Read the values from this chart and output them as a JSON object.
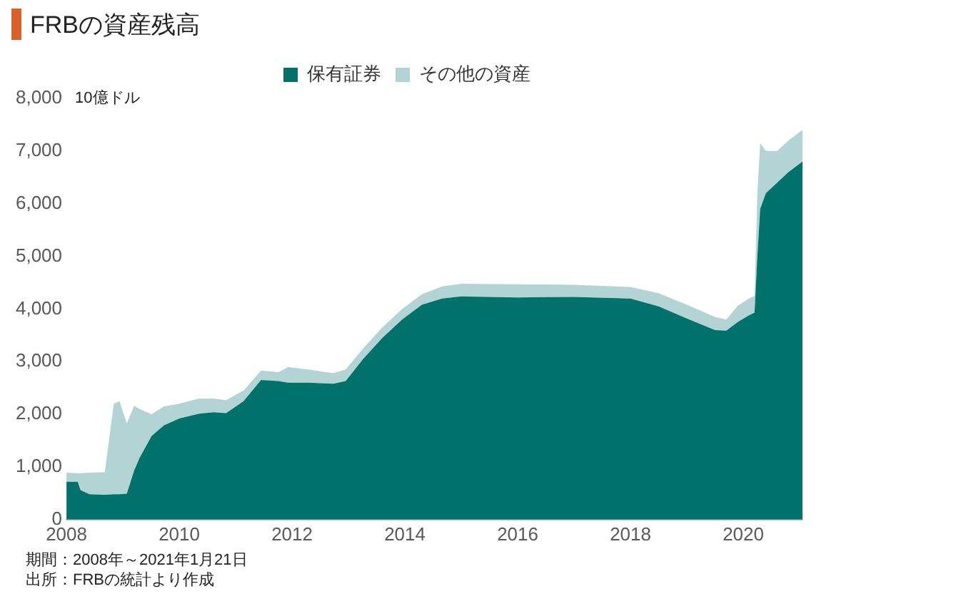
{
  "chart_data": {
    "type": "area",
    "title": "FRBの資産残高",
    "ylabel": "10億ドル",
    "stacked": true,
    "legend": "top",
    "grid": false,
    "x": [
      2008.0,
      2008.2,
      2008.25,
      2008.41,
      2008.68,
      2008.84,
      2008.94,
      2009.07,
      2009.2,
      2009.3,
      2009.51,
      2009.73,
      2010.0,
      2010.35,
      2010.61,
      2010.83,
      2011.14,
      2011.45,
      2011.76,
      2011.93,
      2012.29,
      2012.73,
      2012.95,
      2013.26,
      2013.6,
      2013.95,
      2014.3,
      2014.66,
      2015.0,
      2016.0,
      2017.0,
      2018.0,
      2018.5,
      2019.0,
      2019.5,
      2019.7,
      2019.9,
      2020.1,
      2020.2,
      2020.25,
      2020.3,
      2020.4,
      2020.6,
      2020.8,
      2021.05
    ],
    "series": [
      {
        "name": "保有証券",
        "color": "#00716b",
        "values": [
          720,
          720,
          560,
          480,
          470,
          480,
          480,
          490,
          930,
          1180,
          1590,
          1790,
          1920,
          2010,
          2040,
          2020,
          2250,
          2650,
          2630,
          2600,
          2600,
          2580,
          2630,
          3050,
          3450,
          3800,
          4080,
          4200,
          4240,
          4220,
          4230,
          4200,
          4050,
          3820,
          3600,
          3590,
          3750,
          3880,
          3930,
          5000,
          5900,
          6200,
          6400,
          6600,
          6800
        ]
      },
      {
        "name": "その他の資産",
        "color": "#b3d3d4",
        "values": [
          170,
          160,
          320,
          410,
          430,
          1720,
          1770,
          1340,
          1230,
          920,
          410,
          360,
          280,
          290,
          260,
          250,
          200,
          180,
          170,
          300,
          250,
          200,
          220,
          200,
          200,
          200,
          200,
          230,
          240,
          250,
          230,
          220,
          250,
          260,
          250,
          210,
          310,
          320,
          320,
          1200,
          1250,
          800,
          600,
          600,
          600
        ]
      }
    ],
    "xlim": [
      2008,
      2021.05
    ],
    "xticks": [
      2008,
      2010,
      2012,
      2014,
      2016,
      2018,
      2020
    ],
    "ylim": [
      0,
      8000
    ],
    "yticks": [
      {
        "value": 0,
        "label": "0"
      },
      {
        "value": 1000,
        "label": "1,000"
      },
      {
        "value": 2000,
        "label": "2,000"
      },
      {
        "value": 3000,
        "label": "3,000"
      },
      {
        "value": 4000,
        "label": "4,000"
      },
      {
        "value": 5000,
        "label": "5,000"
      },
      {
        "value": 6000,
        "label": "6,000"
      },
      {
        "value": 7000,
        "label": "7,000"
      },
      {
        "value": 8000,
        "label": "8,000"
      }
    ],
    "annotations": [
      "期間：2008年～2021年1月21日",
      "出所：FRBの統計より作成"
    ]
  }
}
